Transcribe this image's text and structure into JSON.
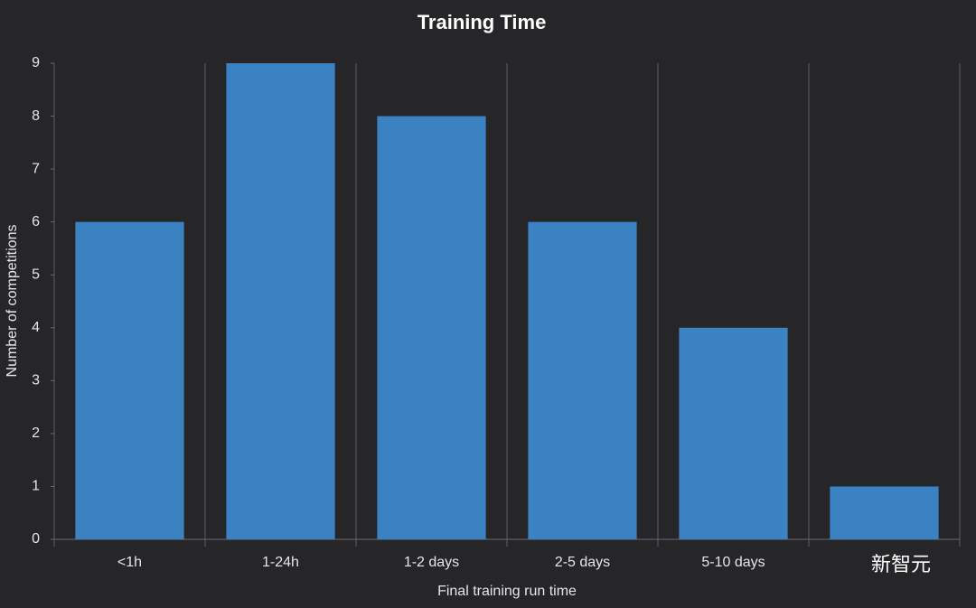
{
  "chart_data": {
    "type": "bar",
    "title": "Training Time",
    "x_label": "Final training run time",
    "y_label": "Number of competitions",
    "categories": [
      "<1h",
      "1-24h",
      "1-2 days",
      "2-5 days",
      "5-10 days",
      null
    ],
    "values": [
      6,
      9,
      8,
      6,
      4,
      1
    ],
    "color": "#3a82c2",
    "ylim": [
      0,
      9
    ],
    "yticks": [
      0,
      1,
      2,
      3,
      4,
      5,
      6,
      7,
      8,
      9
    ],
    "grid": true,
    "annotations": [
      "新智元"
    ]
  }
}
